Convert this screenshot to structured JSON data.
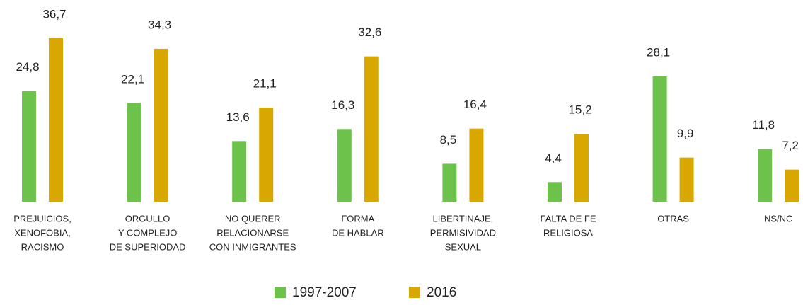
{
  "chart_data": {
    "type": "bar",
    "categories": [
      [
        "PREJUICIOS,",
        "XENOFOBIA,",
        "RACISMO"
      ],
      [
        "ORGULLO",
        "Y COMPLEJO",
        "DE SUPERIODAD"
      ],
      [
        "NO QUERER",
        "RELACIONARSE",
        "CON INMIGRANTES"
      ],
      [
        "FORMA",
        "DE HABLAR"
      ],
      [
        "LIBERTINAJE,",
        "PERMISIVIDAD",
        "SEXUAL"
      ],
      [
        "FALTA DE FE",
        "RELIGIOSA"
      ],
      [
        "OTRAS"
      ],
      [
        "NS/NC"
      ]
    ],
    "series": [
      {
        "name": "1997-2007",
        "color": "#6cc24a",
        "values": [
          24.8,
          22.1,
          13.6,
          16.3,
          8.5,
          4.4,
          28.1,
          11.8
        ],
        "value_labels": [
          "24,8",
          "22,1",
          "13,6",
          "16,3",
          "8,5",
          "4,4",
          "28,1",
          "11,8"
        ]
      },
      {
        "name": "2016",
        "color": "#d8a800",
        "values": [
          36.7,
          34.3,
          21.1,
          32.6,
          16.4,
          15.2,
          9.9,
          7.2
        ],
        "value_labels": [
          "36,7",
          "34,3",
          "21,1",
          "32,6",
          "16,4",
          "15,2",
          "9,9",
          "7,2"
        ]
      }
    ]
  }
}
